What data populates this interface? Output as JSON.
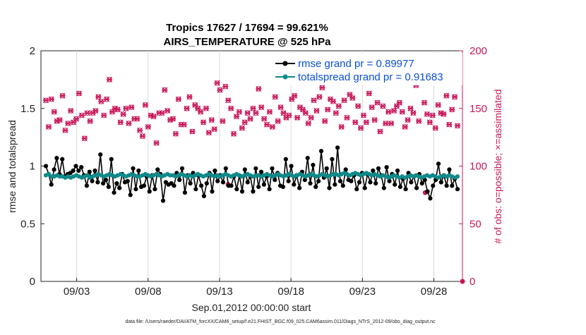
{
  "chart_data": {
    "type": "line",
    "title_line1": "Tropics 17627 / 17694 = 99.621%",
    "title_line2": "AIRS_TEMPERATURE @ 525 hPa",
    "xlabel": "Sep.01,2012 00:00:00 start",
    "ylabel_left": "rmse and totalspread",
    "ylabel_right": "# of obs: o=possible; ×=assimilated",
    "footer": "data file: /Users/raeder/DAI/ATM_forcXX/CAM6_setup/f.e21.FHIST_BGC.f09_025.CAM6assim.011/Diags_NTrS_2012-09/obs_diag_output.nc",
    "xlim": [
      0.5,
      30.0
    ],
    "ylim_left": [
      0,
      2
    ],
    "ylim_right": [
      0,
      200
    ],
    "x_tick_days": [
      3,
      8,
      13,
      18,
      23,
      28
    ],
    "x_tick_labels": [
      "09/03",
      "09/08",
      "09/13",
      "09/18",
      "09/23",
      "09/28"
    ],
    "left_ticks": [
      "0",
      "0.5",
      "1",
      "1.5",
      "2"
    ],
    "right_ticks": [
      "0",
      "50",
      "100",
      "150",
      "200"
    ],
    "left_tick_values": [
      0,
      0.5,
      1,
      1.5,
      2
    ],
    "right_tick_values": [
      0,
      50,
      100,
      150,
      200
    ],
    "series": [
      {
        "name": "rmse grand pr = 0.89977",
        "color": "#000000",
        "axis": "left",
        "values": [
          1.0,
          0.93,
          0.84,
          0.97,
          1.07,
          0.93,
          1.06,
          0.91,
          0.93,
          0.94,
          0.96,
          1.0,
          0.96,
          0.99,
          0.92,
          0.83,
          0.95,
          0.87,
          0.96,
          0.86,
          1.1,
          0.85,
          0.88,
          0.82,
          1.06,
          0.77,
          0.85,
          0.81,
          0.93,
          0.86,
          0.87,
          0.75,
          0.98,
          0.8,
          0.96,
          0.82,
          0.83,
          0.91,
          0.78,
          0.92,
          0.8,
          0.97,
          0.93,
          0.7,
          0.86,
          0.84,
          0.85,
          0.83,
          0.94,
          0.88,
          0.98,
          0.77,
          0.92,
          0.85,
          0.94,
          0.8,
          0.92,
          0.83,
          0.74,
          0.85,
          0.94,
          0.78,
          0.96,
          0.87,
          0.92,
          0.86,
          0.98,
          0.83,
          0.83,
          0.91,
          0.8,
          0.92,
          0.78,
          0.97,
          0.86,
          0.91,
          0.78,
          0.98,
          0.82,
          0.95,
          0.84,
          0.91,
          0.8,
          0.98,
          0.88,
          0.94,
          0.83,
          0.82,
          1.06,
          0.87,
          1.0,
          0.84,
          0.92,
          0.81,
          0.95,
          0.88,
          1.07,
          0.85,
          1.01,
          0.82,
          0.87,
          1.13,
          0.9,
          0.98,
          0.81,
          1.06,
          0.84,
          1.16,
          0.87,
          0.83,
          0.97,
          0.88,
          0.87,
          0.92,
          0.8,
          0.86,
          0.94,
          0.81,
          0.93,
          0.86,
          0.96,
          0.85,
          0.98,
          0.92,
          0.81,
          0.99,
          0.87,
          0.93,
          0.84,
          0.96,
          0.82,
          0.89,
          0.8,
          0.94,
          0.86,
          0.91,
          0.81,
          0.93,
          0.85,
          0.88,
          0.78,
          0.72,
          0.83,
          0.88,
          1.02,
          0.86,
          0.92,
          0.83,
          0.97,
          0.83,
          0.89,
          0.8
        ]
      },
      {
        "name": "totalspread grand pr = 0.91683",
        "color": "#0e8a8a",
        "axis": "left",
        "values": [
          0.92,
          0.93,
          0.91,
          0.91,
          0.92,
          0.91,
          0.91,
          0.9,
          0.91,
          0.9,
          0.91,
          0.92,
          0.91,
          0.9,
          0.91,
          0.92,
          0.9,
          0.91,
          0.92,
          0.93,
          0.92,
          0.91,
          0.92,
          0.93,
          0.92,
          0.91,
          0.92,
          0.93,
          0.92,
          0.91,
          0.92,
          0.93,
          0.92,
          0.91,
          0.91,
          0.92,
          0.93,
          0.92,
          0.91,
          0.92,
          0.93,
          0.92,
          0.91,
          0.92,
          0.93,
          0.92,
          0.92,
          0.91,
          0.92,
          0.93,
          0.92,
          0.91,
          0.92,
          0.91,
          0.92,
          0.93,
          0.92,
          0.91,
          0.92,
          0.93,
          0.92,
          0.91,
          0.92,
          0.91,
          0.92,
          0.93,
          0.92,
          0.91,
          0.92,
          0.93,
          0.92,
          0.91,
          0.92,
          0.93,
          0.92,
          0.91,
          0.92,
          0.92,
          0.91,
          0.92,
          0.93,
          0.92,
          0.91,
          0.92,
          0.93,
          0.92,
          0.91,
          0.92,
          0.93,
          0.92,
          0.91,
          0.92,
          0.93,
          0.92,
          0.91,
          0.92,
          0.93,
          0.92,
          0.91,
          0.92,
          0.93,
          0.92,
          0.91,
          0.92,
          0.93,
          0.93,
          0.92,
          0.93,
          0.94,
          0.93,
          0.92,
          0.93,
          0.94,
          0.93,
          0.92,
          0.93,
          0.94,
          0.93,
          0.92,
          0.93,
          0.92,
          0.91,
          0.92,
          0.91,
          0.9,
          0.91,
          0.92,
          0.91,
          0.9,
          0.91,
          0.9,
          0.91,
          0.92,
          0.91,
          0.92,
          0.91,
          0.9,
          0.91,
          0.92,
          0.91,
          0.92,
          0.91,
          0.9,
          0.91,
          0.92,
          0.91,
          0.92,
          0.91,
          0.9,
          0.91
        ]
      },
      {
        "name": "# of obs possible",
        "marker": "o",
        "color": "#c8175b",
        "axis": "right",
        "values": [
          157,
          134,
          158,
          147,
          139,
          140,
          161,
          131,
          137,
          148,
          138,
          141,
          163,
          144,
          124,
          146,
          139,
          146,
          148,
          160,
          156,
          144,
          158,
          175,
          147,
          150,
          149,
          138,
          145,
          150,
          137,
          151,
          141,
          141,
          131,
          126,
          153,
          134,
          144,
          143,
          120,
          146,
          146,
          166,
          148,
          140,
          141,
          128,
          158,
          136,
          136,
          150,
          160,
          130,
          153,
          150,
          147,
          138,
          150,
          129,
          140,
          132,
          172,
          166,
          139,
          169,
          157,
          150,
          128,
          143,
          147,
          133,
          138,
          146,
          141,
          150,
          146,
          167,
          151,
          141,
          136,
          147,
          134,
          160,
          139,
          151,
          146,
          142,
          144,
          158,
          161,
          142,
          151,
          149,
          146,
          137,
          142,
          157,
          148,
          160,
          168,
          139,
          149,
          158,
          156,
          146,
          152,
          134,
          157,
          142,
          162,
          159,
          138,
          152,
          133,
          144,
          138,
          163,
          151,
          140,
          155,
          130,
          152,
          137,
          147,
          137,
          148,
          152,
          155,
          147,
          134,
          140,
          150,
          146,
          170,
          139,
          177,
          155,
          145,
          138,
          144,
          133,
          153,
          146,
          145,
          161,
          136,
          149,
          160,
          135
        ]
      },
      {
        "name": "# of obs assimilated",
        "marker": "x",
        "color": "#c8175b",
        "axis": "right",
        "values": [
          157,
          134,
          158,
          147,
          139,
          140,
          161,
          131,
          137,
          148,
          138,
          141,
          163,
          144,
          124,
          146,
          139,
          146,
          148,
          160,
          156,
          144,
          158,
          175,
          147,
          150,
          149,
          138,
          145,
          150,
          137,
          151,
          141,
          141,
          131,
          126,
          153,
          134,
          144,
          143,
          120,
          146,
          146,
          166,
          148,
          140,
          141,
          128,
          158,
          136,
          136,
          150,
          160,
          130,
          153,
          150,
          147,
          138,
          150,
          129,
          140,
          132,
          172,
          166,
          139,
          169,
          157,
          150,
          128,
          143,
          147,
          133,
          138,
          146,
          141,
          150,
          146,
          167,
          151,
          141,
          136,
          147,
          134,
          160,
          139,
          151,
          146,
          142,
          144,
          158,
          161,
          142,
          151,
          149,
          146,
          137,
          142,
          157,
          148,
          160,
          168,
          139,
          149,
          158,
          156,
          146,
          152,
          134,
          157,
          142,
          162,
          159,
          138,
          152,
          133,
          144,
          138,
          163,
          151,
          140,
          155,
          130,
          152,
          137,
          147,
          137,
          148,
          152,
          155,
          147,
          134,
          140,
          150,
          146,
          170,
          139,
          177,
          155,
          145,
          138,
          144,
          133,
          153,
          146,
          145,
          161,
          136,
          149,
          160,
          135
        ]
      }
    ],
    "extra_points": [
      {
        "day": 13.6,
        "value": 84,
        "label": "low-obs-marker"
      },
      {
        "day": 27.4,
        "value": 77,
        "label": "low-obs-marker"
      },
      {
        "day": 30.0,
        "value": 0,
        "label": "zero-obs-marker"
      }
    ],
    "legend": {
      "position": "top-right",
      "entries": [
        {
          "label": "rmse grand pr = 0.89977",
          "color": "#000000"
        },
        {
          "label": "totalspread grand pr = 0.91683",
          "color": "#0e8a8a"
        }
      ]
    }
  }
}
